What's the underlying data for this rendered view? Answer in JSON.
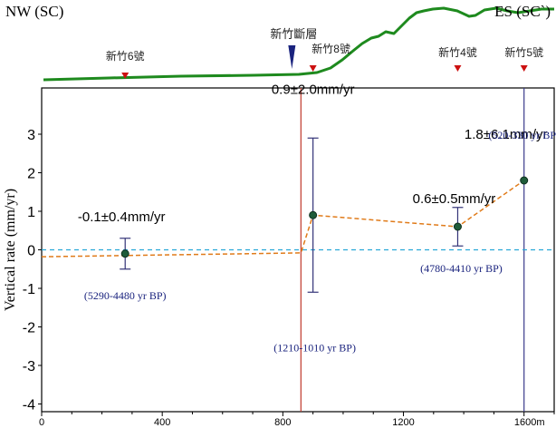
{
  "chart_data": {
    "type": "scatter",
    "title": "",
    "xlabel": "",
    "ylabel": "Vertical rate (mm/yr)",
    "xlim": [
      0,
      1700
    ],
    "ylim": [
      -4.2,
      4.2
    ],
    "x_ticks": [
      0,
      400,
      800,
      1200,
      1600
    ],
    "x_tick_labels": [
      "0",
      "400",
      "800",
      "1200",
      "1600m"
    ],
    "y_ticks": [
      -4,
      -3,
      -2,
      -1,
      0,
      1,
      2,
      3
    ],
    "y_tick_labels": [
      "-4",
      "-3",
      "-2",
      "-1",
      "0",
      "1",
      "2",
      "3"
    ],
    "grid": false,
    "series": [
      {
        "points": [
          {
            "x": 277,
            "y": -0.1,
            "err_low": -0.5,
            "err_high": 0.3,
            "rate_label": "-0.1±0.4mm/yr",
            "age_label": "(5290-4480 yr BP)"
          },
          {
            "x": 900,
            "y": 0.9,
            "err_low": -1.1,
            "err_high": 2.9,
            "rate_label": "0.9±2.0mm/yr",
            "age_label": "(1210-1010 yr BP)"
          },
          {
            "x": 1380,
            "y": 0.6,
            "err_low": 0.1,
            "err_high": 1.1,
            "rate_label": "0.6±0.5mm/yr",
            "age_label": "(4780-4410 yr BP)"
          },
          {
            "x": 1600,
            "y": 1.8,
            "err_low": null,
            "err_high": null,
            "rate_label": "1.8±6.1mm/yr",
            "age_label": "(520-330 yr BP)"
          }
        ]
      }
    ],
    "trend_line": [
      [
        0,
        -0.18
      ],
      [
        860,
        -0.08
      ],
      [
        900,
        0.9
      ],
      [
        1380,
        0.6
      ],
      [
        1600,
        1.8
      ]
    ],
    "zero_line": 0,
    "vertical_lines": [
      {
        "x": 860,
        "color": "#c0392b"
      },
      {
        "x": 1600,
        "color": "#3a3a8a"
      }
    ],
    "profile": {
      "left_label": "NW (SC)",
      "right_label": "ES (SC`)",
      "fault_label": "新竹斷層",
      "fault_x": 830,
      "wells": [
        {
          "x": 277,
          "label": "新竹6號"
        },
        {
          "x": 900,
          "label": "新竹8號"
        },
        {
          "x": 1380,
          "label": "新竹4號"
        },
        {
          "x": 1600,
          "label": "新竹5號"
        }
      ]
    },
    "colors": {
      "profile": "#1e8a1e",
      "points": "#1f5c3a",
      "trend": "#e07b1a",
      "zero": "#2aa8d8",
      "error_bars": "#333377",
      "well_markers": "#cc1111",
      "fault_marker": "#1a237e",
      "age_text": "#1a237e"
    }
  }
}
